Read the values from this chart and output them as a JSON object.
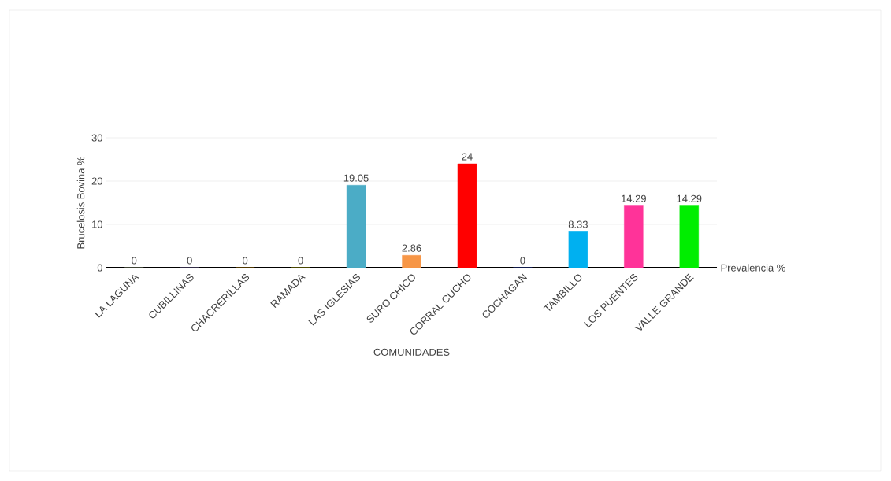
{
  "chart_data": {
    "type": "bar",
    "xlabel": "COMUNIDADES",
    "ylabel": "Brucelosis Bovina %",
    "categories": [
      "LA LAGUNA",
      "CUBILLINAS",
      "CHACRERILLAS",
      "RAMADA",
      "LAS IGLESIAS",
      "SURO CHICO",
      "CORRAL CUCHO",
      "COCHAGAN",
      "TAMBILLO",
      "LOS PUENTES",
      "VALLE GRANDE"
    ],
    "series": [
      {
        "name": "Prevalencia %",
        "values": [
          0,
          0,
          0,
          0,
          19.05,
          2.86,
          24,
          0,
          8.33,
          14.29,
          14.29
        ],
        "colors": [
          "#a9b892",
          "#8e7cc3",
          "#d99a00",
          "#c9c400",
          "#4bacc6",
          "#f79646",
          "#ff0000",
          "#2e4fd1",
          "#00b0f0",
          "#ff3399",
          "#00ee00"
        ]
      }
    ],
    "ylim": [
      0,
      30
    ],
    "yticks": [
      0,
      10,
      20,
      30
    ],
    "grid": "y",
    "data_labels": true
  }
}
